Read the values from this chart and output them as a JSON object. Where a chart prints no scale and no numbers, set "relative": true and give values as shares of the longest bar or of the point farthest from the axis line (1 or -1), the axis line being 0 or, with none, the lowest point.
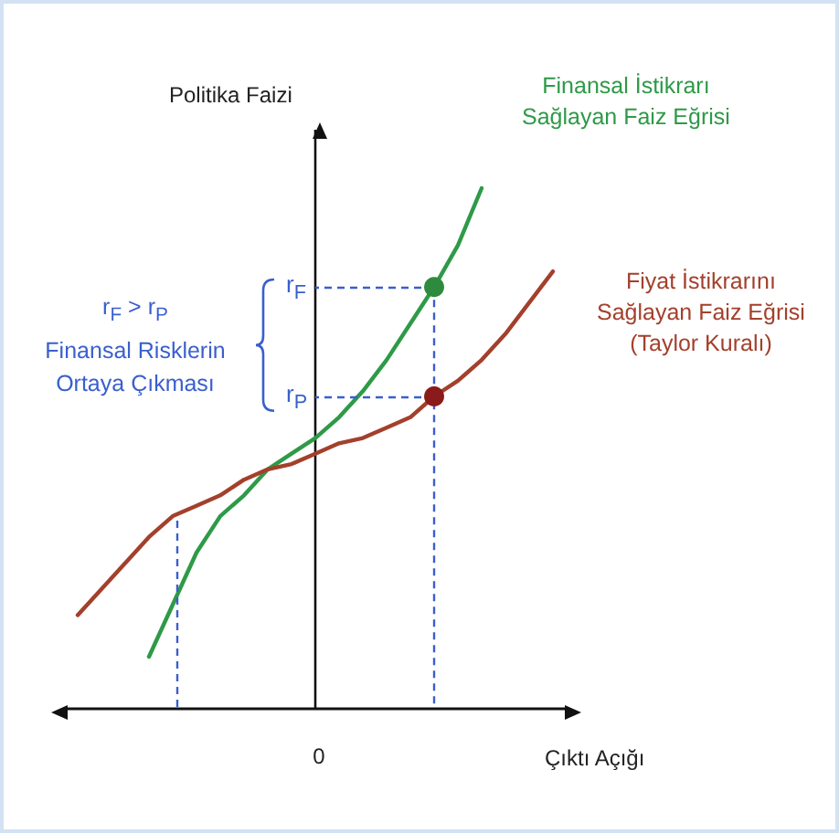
{
  "chart_data": {
    "type": "line",
    "relative": true,
    "xlabel": "Çıktı Açığı",
    "ylabel": "Politika Faizi",
    "categories": [
      null,
      null,
      null,
      null,
      null,
      null,
      null,
      null,
      null,
      null,
      null,
      null,
      null,
      null,
      null,
      null,
      null,
      null,
      null,
      null,
      null
    ],
    "series": [
      {
        "name": "Finansal İstikrarı\nSağlayan Faiz Eğrisi",
        "color": "#2e9a48",
        "values": [
          null,
          null,
          null,
          0.1,
          0.2,
          0.3,
          0.37,
          0.41,
          0.46,
          0.49,
          0.52,
          0.56,
          0.61,
          0.67,
          0.74,
          0.81,
          0.89,
          1,
          null,
          null,
          null
        ]
      },
      {
        "name": "Fiyat İstikrarını\nSağlayan Faiz Eğrisi\n(Taylor Kuralı)",
        "color": "#a3402c",
        "values": [
          0.18,
          0.23,
          0.28,
          0.33,
          0.37,
          0.39,
          0.41,
          0.44,
          0.46,
          0.47,
          0.49,
          0.51,
          0.52,
          0.54,
          0.56,
          0.6,
          0.63,
          0.67,
          0.72,
          0.78,
          0.84
        ]
      },
      {
        "marker": "circle",
        "color": "#2e8b3e",
        "values": [
          null,
          null,
          null,
          null,
          null,
          null,
          null,
          null,
          null,
          null,
          null,
          null,
          null,
          null,
          null,
          0.81,
          null,
          null,
          null,
          null,
          null
        ]
      },
      {
        "marker": "circle",
        "color": "#8b1a1a",
        "values": [
          null,
          null,
          null,
          null,
          null,
          null,
          null,
          null,
          null,
          null,
          null,
          null,
          null,
          null,
          null,
          0.6,
          null,
          null,
          null,
          null,
          null
        ]
      }
    ],
    "annotations": [
      "r$_{F}$ > r$_{P}$\nFinansal Risklerin\nOrtaya Çıkması",
      "r$_{F}$",
      "r$_{P}$",
      "0"
    ]
  }
}
